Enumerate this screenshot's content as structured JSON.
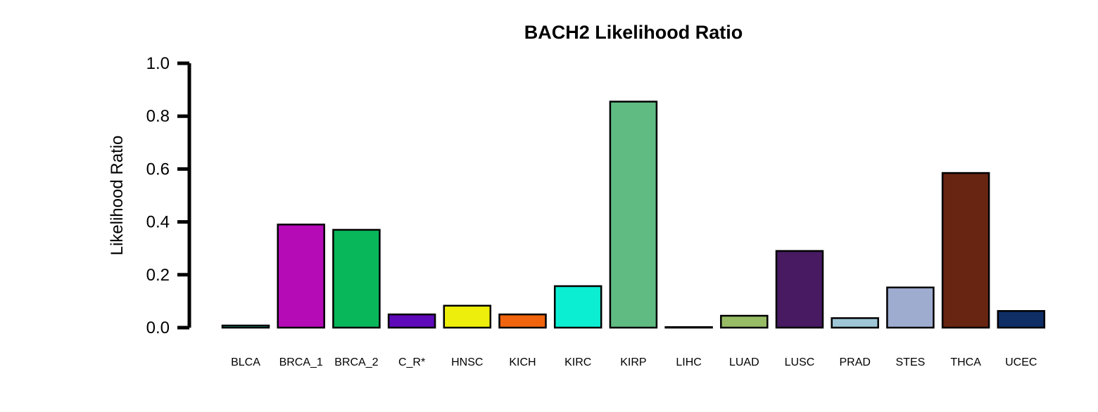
{
  "chart_data": {
    "type": "bar",
    "title": "BACH2 Likelihood Ratio",
    "xlabel": "",
    "ylabel": "Likelihood Ratio",
    "ylim": [
      0,
      1.0
    ],
    "yticks": [
      "0.0",
      "0.2",
      "0.4",
      "0.6",
      "0.8",
      "1.0"
    ],
    "grid": false,
    "categories": [
      "BLCA",
      "BRCA_1",
      "BRCA_2",
      "C_R*",
      "HNSC",
      "KICH",
      "KIRC",
      "KIRP",
      "LIHC",
      "LUAD",
      "LUSC",
      "PRAD",
      "STES",
      "THCA",
      "UCEC"
    ],
    "values": [
      0.008,
      0.39,
      0.37,
      0.05,
      0.083,
      0.05,
      0.157,
      0.855,
      0.002,
      0.045,
      0.29,
      0.036,
      0.152,
      0.585,
      0.063
    ],
    "colors": [
      "#1fb5a8",
      "#b40bb7",
      "#08b75a",
      "#5e0ab8",
      "#eeee0c",
      "#f0640e",
      "#0ceed2",
      "#5fbb82",
      "#3a1a10",
      "#98bb66",
      "#481a62",
      "#9ec6d6",
      "#9eacd0",
      "#672512",
      "#0f2e66"
    ]
  }
}
